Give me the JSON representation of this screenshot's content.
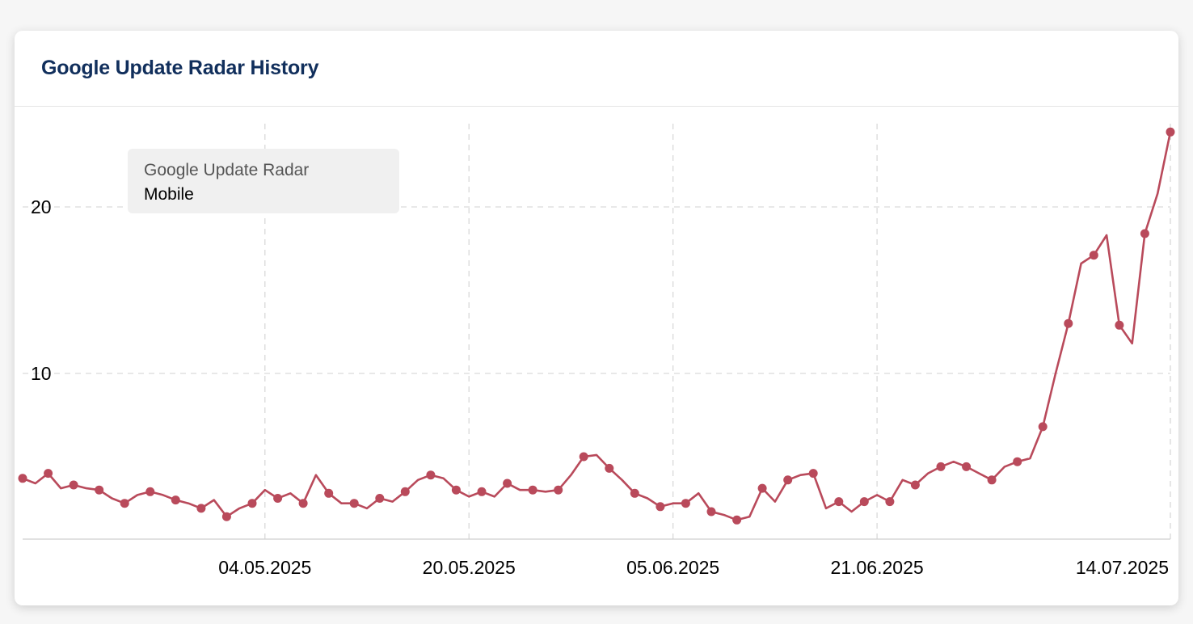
{
  "card": {
    "title": "Google Update Radar History"
  },
  "legend": {
    "title": "Google Update Radar",
    "series_label": "Mobile"
  },
  "colors": {
    "line": "#b94a5b",
    "title": "#112f5c",
    "grid": "#d9d9d9"
  },
  "chart_data": {
    "type": "line",
    "series": [
      {
        "name": "Mobile",
        "x": [
          "2025-04-15",
          "2025-04-16",
          "2025-04-17",
          "2025-04-18",
          "2025-04-19",
          "2025-04-20",
          "2025-04-21",
          "2025-04-22",
          "2025-04-23",
          "2025-04-24",
          "2025-04-25",
          "2025-04-26",
          "2025-04-27",
          "2025-04-28",
          "2025-04-29",
          "2025-04-30",
          "2025-05-01",
          "2025-05-02",
          "2025-05-03",
          "2025-05-04",
          "2025-05-05",
          "2025-05-06",
          "2025-05-07",
          "2025-05-08",
          "2025-05-09",
          "2025-05-10",
          "2025-05-11",
          "2025-05-12",
          "2025-05-13",
          "2025-05-14",
          "2025-05-15",
          "2025-05-16",
          "2025-05-17",
          "2025-05-18",
          "2025-05-19",
          "2025-05-20",
          "2025-05-21",
          "2025-05-22",
          "2025-05-23",
          "2025-05-24",
          "2025-05-25",
          "2025-05-26",
          "2025-05-27",
          "2025-05-28",
          "2025-05-29",
          "2025-05-30",
          "2025-05-31",
          "2025-06-01",
          "2025-06-02",
          "2025-06-03",
          "2025-06-04",
          "2025-06-05",
          "2025-06-06",
          "2025-06-07",
          "2025-06-08",
          "2025-06-09",
          "2025-06-10",
          "2025-06-11",
          "2025-06-12",
          "2025-06-13",
          "2025-06-14",
          "2025-06-15",
          "2025-06-16",
          "2025-06-17",
          "2025-06-18",
          "2025-06-19",
          "2025-06-20",
          "2025-06-21",
          "2025-06-22",
          "2025-06-23",
          "2025-06-24",
          "2025-06-25",
          "2025-06-26",
          "2025-06-27",
          "2025-06-28",
          "2025-06-29",
          "2025-06-30",
          "2025-07-01",
          "2025-07-02",
          "2025-07-03",
          "2025-07-04",
          "2025-07-05",
          "2025-07-06",
          "2025-07-07",
          "2025-07-08",
          "2025-07-09",
          "2025-07-10",
          "2025-07-11",
          "2025-07-12",
          "2025-07-13",
          "2025-07-14"
        ],
        "values": [
          3.7,
          3.4,
          4.0,
          3.1,
          3.3,
          3.1,
          3.0,
          2.5,
          2.2,
          2.7,
          2.9,
          2.7,
          2.4,
          2.2,
          1.9,
          2.4,
          1.4,
          1.9,
          2.2,
          3.0,
          2.5,
          2.8,
          2.2,
          3.9,
          2.8,
          2.2,
          2.2,
          1.9,
          2.5,
          2.3,
          2.9,
          3.6,
          3.9,
          3.7,
          3.0,
          2.6,
          2.9,
          2.6,
          3.4,
          3.0,
          3.0,
          2.9,
          3.0,
          3.9,
          5.0,
          5.1,
          4.3,
          3.6,
          2.8,
          2.5,
          2.0,
          2.2,
          2.2,
          2.8,
          1.7,
          1.5,
          1.2,
          1.4,
          3.1,
          2.3,
          3.6,
          3.9,
          4.0,
          1.9,
          2.3,
          1.7,
          2.3,
          2.7,
          2.3,
          3.6,
          3.3,
          4.0,
          4.4,
          4.7,
          4.4,
          4.0,
          3.6,
          4.4,
          4.7,
          4.9,
          6.8,
          10.0,
          13.0,
          16.6,
          17.1,
          18.3,
          12.9,
          11.8,
          18.4,
          20.8,
          24.5
        ]
      }
    ],
    "x_ticks": [
      "04.05.2025",
      "20.05.2025",
      "05.06.2025",
      "21.06.2025",
      "14.07.2025"
    ],
    "x_tick_dates": [
      "2025-05-04",
      "2025-05-20",
      "2025-06-05",
      "2025-06-21",
      "2025-07-14"
    ],
    "y_ticks": [
      10,
      20
    ],
    "ylim": [
      0,
      25
    ],
    "xlim": [
      "2025-04-15",
      "2025-07-14"
    ],
    "marker_every": 2,
    "grid": true,
    "legend_position": "top-left"
  }
}
